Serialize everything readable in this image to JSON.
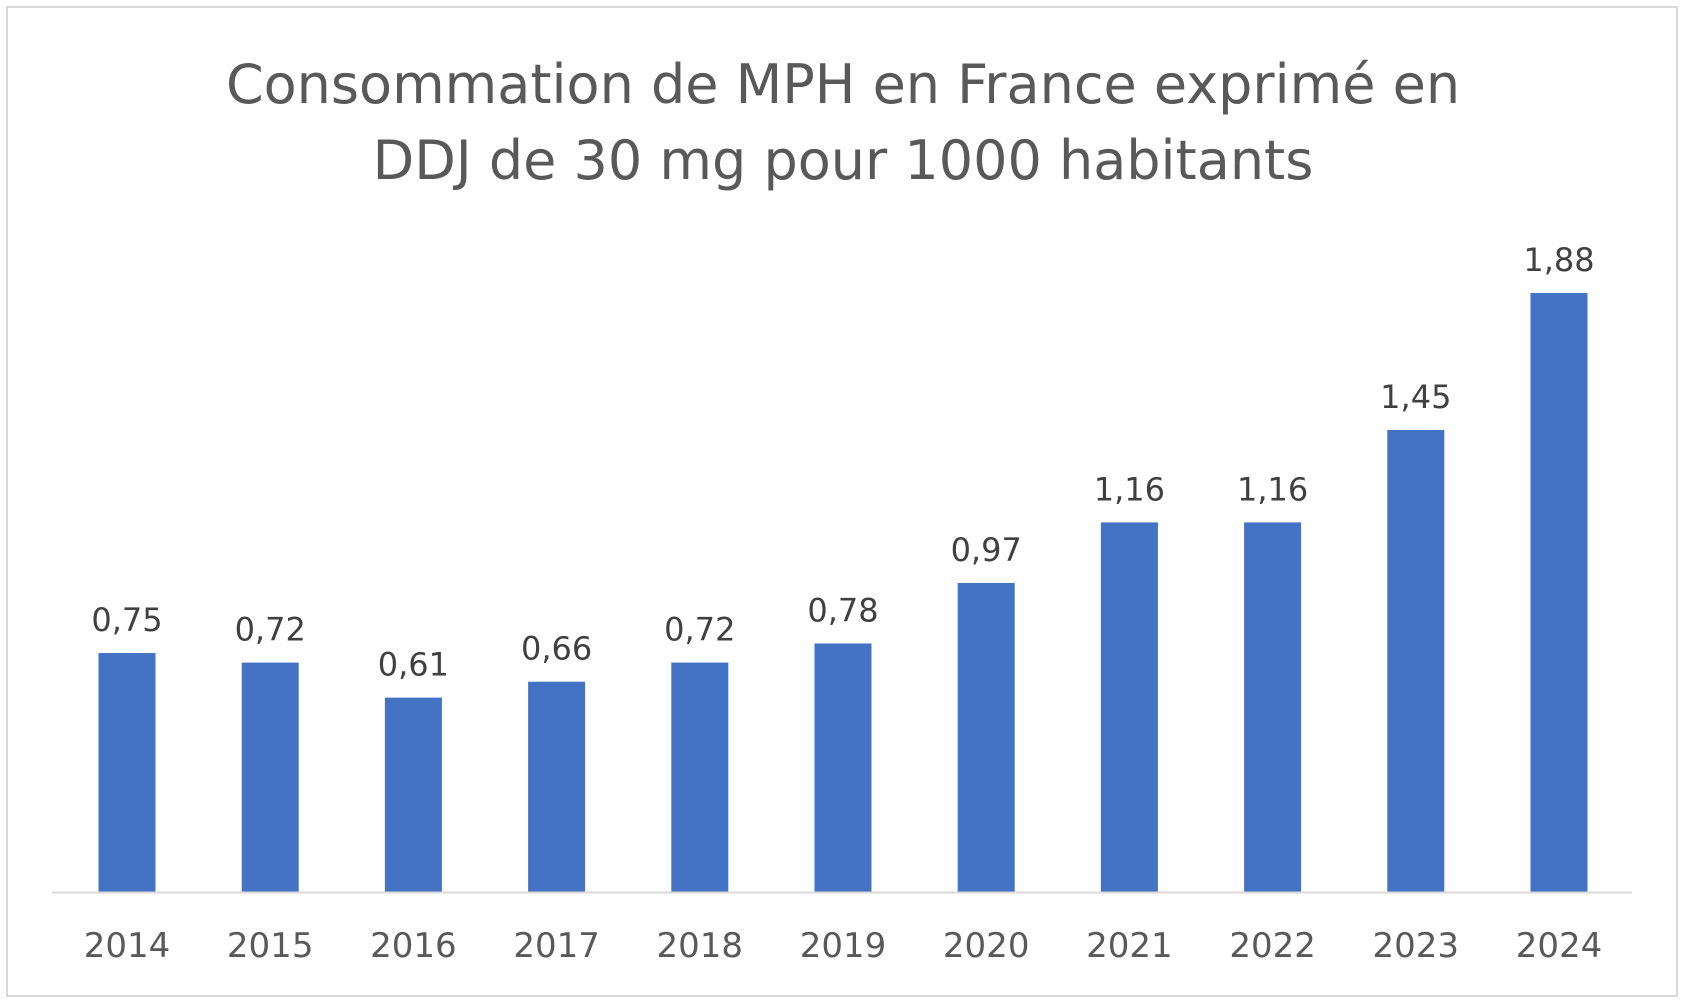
{
  "chart_data": {
    "type": "bar",
    "title_line1": "Consommation de MPH en France exprimé en",
    "title_line2": "DDJ de 30 mg pour 1000 habitants",
    "categories": [
      "2014",
      "2015",
      "2016",
      "2017",
      "2018",
      "2019",
      "2020",
      "2021",
      "2022",
      "2023",
      "2024"
    ],
    "values": [
      0.75,
      0.72,
      0.61,
      0.66,
      0.72,
      0.78,
      0.97,
      1.16,
      1.16,
      1.45,
      1.88
    ],
    "value_labels": [
      "0,75",
      "0,72",
      "0,61",
      "0,66",
      "0,72",
      "0,78",
      "0,97",
      "1,16",
      "1,16",
      "1,45",
      "1,88"
    ],
    "xlabel": "",
    "ylabel": "",
    "ylim": [
      0,
      1.88
    ],
    "grid": false,
    "bar_color": "#4472c4",
    "axis_color": "#d9d9d9"
  }
}
